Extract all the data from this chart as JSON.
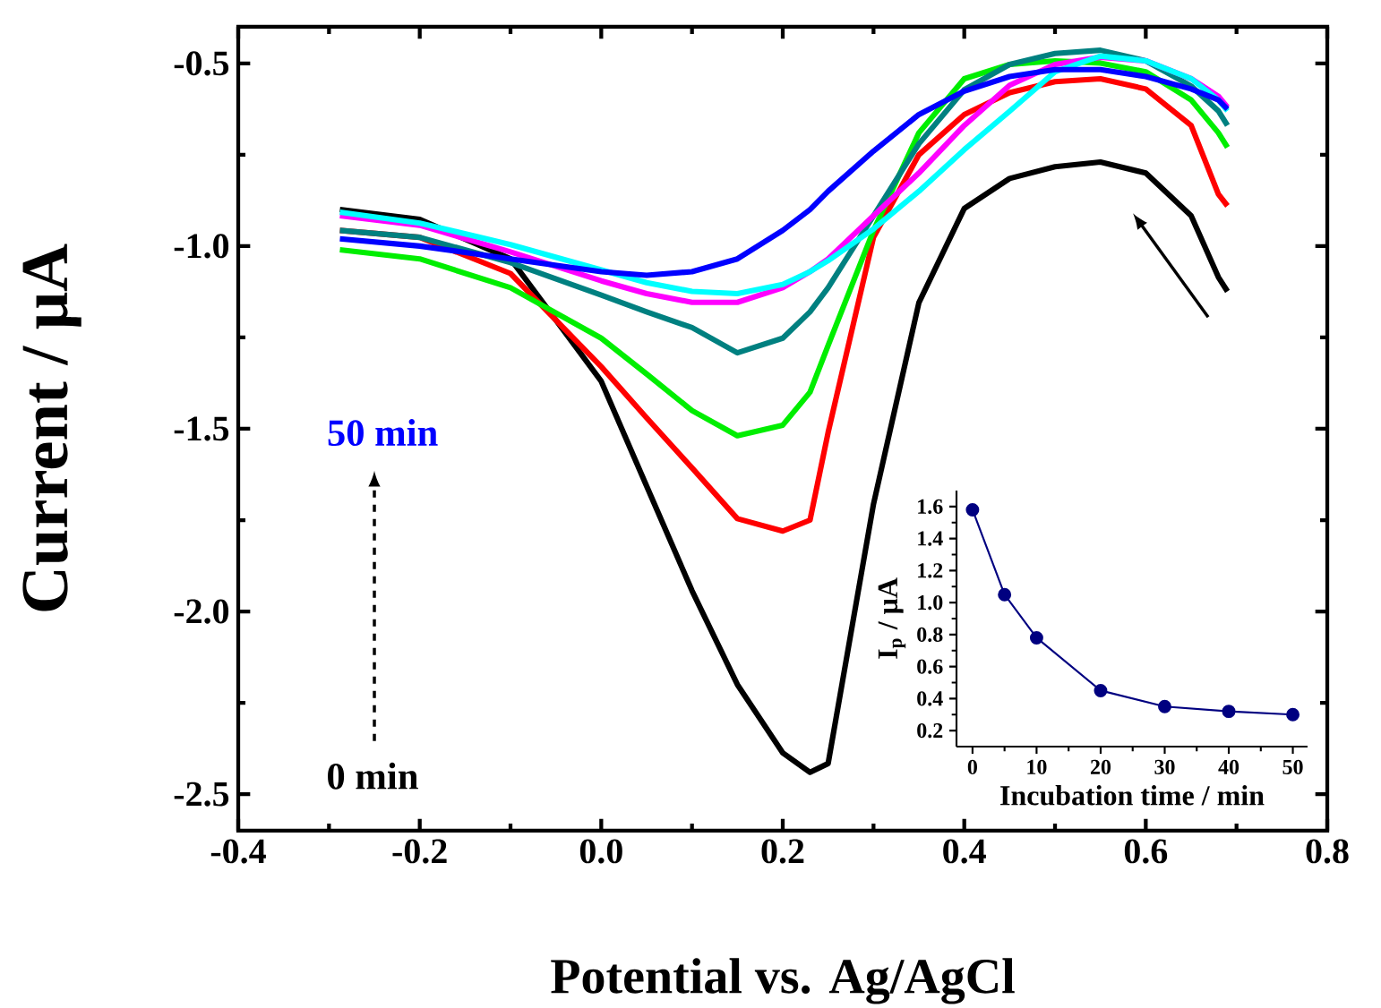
{
  "chart_data": [
    {
      "type": "line",
      "xlabel": "Potential vs. Ag/AgCl",
      "ylabel": "Current / μA",
      "xlim": [
        -0.4,
        0.8
      ],
      "ylim": [
        -2.6,
        -0.4
      ],
      "xticks": [
        -0.4,
        -0.2,
        {
          "value": 0,
          "label": "0.0"
        },
        0.2,
        0.4,
        0.6,
        0.8
      ],
      "yticks": [
        {
          "value": -2.5,
          "label": "-2.5"
        },
        {
          "value": -2.0,
          "label": "-2.0"
        },
        {
          "value": -1.5,
          "label": "-1.5"
        },
        {
          "value": -1.0,
          "label": "-1.0"
        },
        {
          "value": -0.5,
          "label": "-0.5"
        }
      ],
      "x": [
        -0.288,
        -0.2,
        -0.1,
        0,
        0.05,
        0.1,
        0.15,
        0.2,
        0.23,
        0.25,
        0.3,
        0.35,
        0.4,
        0.45,
        0.5,
        0.55,
        0.6,
        0.65,
        0.68,
        0.69
      ],
      "series": [
        {
          "color": "#000000",
          "values": [
            -0.9,
            -0.927,
            -1.035,
            -1.37,
            -1.657,
            -1.943,
            -2.2,
            -2.387,
            -2.44,
            -2.416,
            -1.706,
            -1.155,
            -0.897,
            -0.815,
            -0.783,
            -0.77,
            -0.8,
            -0.917,
            -1.085,
            -1.124
          ]
        },
        {
          "color": "#ff0000",
          "values": [
            -0.957,
            -0.976,
            -1.075,
            -1.33,
            -1.47,
            -1.607,
            -1.746,
            -1.78,
            -1.75,
            -1.51,
            -0.976,
            -0.75,
            -0.64,
            -0.58,
            -0.55,
            -0.542,
            -0.57,
            -0.67,
            -0.858,
            -0.89
          ]
        },
        {
          "color": "#00ee00",
          "values": [
            -1.01,
            -1.035,
            -1.114,
            -1.252,
            -1.35,
            -1.45,
            -1.519,
            -1.49,
            -1.4,
            -1.272,
            -0.957,
            -0.69,
            -0.542,
            -0.503,
            -0.493,
            -0.499,
            -0.523,
            -0.6,
            -0.69,
            -0.73
          ]
        },
        {
          "color": "#008080",
          "values": [
            -0.957,
            -0.976,
            -1.045,
            -1.134,
            -1.18,
            -1.223,
            -1.292,
            -1.252,
            -1.18,
            -1.114,
            -0.917,
            -0.72,
            -0.572,
            -0.503,
            -0.473,
            -0.464,
            -0.493,
            -0.562,
            -0.63,
            -0.67
          ]
        },
        {
          "color": "#ff00ff",
          "values": [
            -0.917,
            -0.943,
            -1.016,
            -1.095,
            -1.13,
            -1.154,
            -1.154,
            -1.114,
            -1.07,
            -1.035,
            -0.917,
            -0.8,
            -0.67,
            -0.56,
            -0.503,
            -0.483,
            -0.493,
            -0.542,
            -0.59,
            -0.62
          ]
        },
        {
          "color": "#00ffff",
          "values": [
            -0.907,
            -0.937,
            -0.996,
            -1.065,
            -1.1,
            -1.124,
            -1.13,
            -1.105,
            -1.07,
            -1.04,
            -0.953,
            -0.85,
            -0.736,
            -0.631,
            -0.523,
            -0.48,
            -0.493,
            -0.542,
            -0.6,
            -0.63
          ]
        },
        {
          "color": "#0000ff",
          "values": [
            -0.98,
            -1.0,
            -1.035,
            -1.07,
            -1.08,
            -1.07,
            -1.035,
            -0.957,
            -0.9,
            -0.85,
            -0.74,
            -0.64,
            -0.576,
            -0.536,
            -0.517,
            -0.517,
            -0.536,
            -0.57,
            -0.6,
            -0.625
          ]
        }
      ],
      "annotations": [
        "0 min",
        "50 min"
      ]
    },
    {
      "type": "line",
      "xlabel": "Incubation time / min",
      "ylabel": "I$_{p}$ / μA",
      "xlim": [
        -2.5,
        52.3
      ],
      "ylim": [
        0.1,
        1.7
      ],
      "xticks": [
        0,
        10,
        20,
        30,
        40,
        50
      ],
      "yticks": [
        0.2,
        0.4,
        0.6,
        0.8,
        {
          "value": 1.0,
          "label": "1.0"
        },
        1.2,
        1.4,
        1.6
      ],
      "marker": "circle",
      "series": [
        {
          "color": "#000080",
          "x": [
            0,
            5,
            10,
            20,
            30,
            40,
            50
          ],
          "values": [
            1.58,
            1.05,
            0.78,
            0.45,
            0.35,
            0.32,
            0.3
          ]
        }
      ]
    }
  ]
}
